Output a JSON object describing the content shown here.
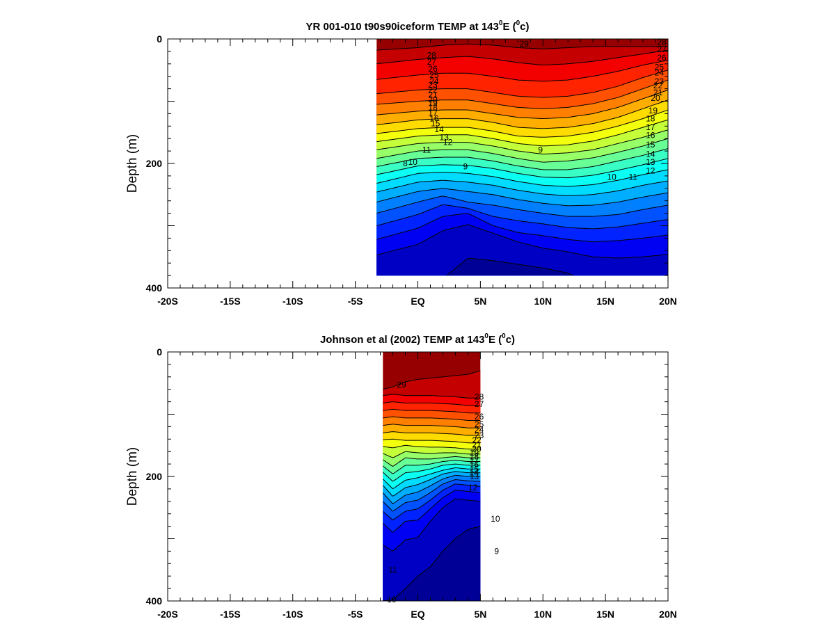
{
  "chart_data": [
    {
      "type": "heatmap",
      "subtype": "filled-contour",
      "title": "YR 001-010 t90s90iceform TEMP at 143",
      "title_sup1": "0",
      "title_mid": "E (",
      "title_sup2": "0",
      "title_end": "c)",
      "ylabel": "Depth (m)",
      "xlim": [
        -20,
        20
      ],
      "ylim": [
        0,
        400
      ],
      "y_inverted": true,
      "y_ticks": [
        0,
        200,
        400
      ],
      "x_ticks": [
        -20,
        -15,
        -10,
        -5,
        0,
        5,
        10,
        15,
        20
      ],
      "x_tick_labels": [
        "-20S",
        "-15S",
        "-10S",
        "-5S",
        "EQ",
        "5N",
        "10N",
        "15N",
        "20N"
      ],
      "data_extent": {
        "lat": [
          -3.3,
          20
        ],
        "depth": [
          0,
          380
        ]
      },
      "contour_levels": [
        8,
        9,
        10,
        11,
        12,
        13,
        14,
        15,
        16,
        17,
        18,
        19,
        20,
        21,
        22,
        23,
        24,
        25,
        26,
        27,
        28,
        29
      ],
      "colorscale": "jet",
      "color_range": [
        8,
        30
      ],
      "isotherm_depth_profiles": {
        "lats": [
          -3.3,
          0,
          2,
          4,
          6,
          8,
          10,
          12,
          14,
          16,
          18,
          20
        ],
        "temps": [
          29,
          28,
          27,
          26,
          25,
          24,
          23,
          22,
          21,
          20,
          19,
          18,
          17,
          16,
          15,
          14,
          13,
          12,
          11,
          10,
          9
        ],
        "depths": [
          [
            18,
            14,
            10,
            8,
            10,
            14,
            16,
            14,
            12,
            12,
            12,
            12
          ],
          [
            40,
            33,
            30,
            28,
            32,
            38,
            42,
            40,
            36,
            30,
            24,
            18
          ],
          [
            65,
            58,
            55,
            55,
            60,
            66,
            68,
            66,
            60,
            52,
            42,
            34
          ],
          [
            88,
            82,
            80,
            80,
            86,
            92,
            94,
            92,
            86,
            76,
            62,
            50
          ],
          [
            105,
            100,
            98,
            98,
            104,
            110,
            112,
            110,
            104,
            94,
            80,
            66
          ],
          [
            122,
            116,
            114,
            114,
            120,
            126,
            128,
            126,
            120,
            110,
            96,
            82
          ],
          [
            138,
            130,
            128,
            128,
            134,
            142,
            144,
            142,
            136,
            126,
            112,
            98
          ],
          [
            152,
            144,
            142,
            142,
            148,
            156,
            158,
            156,
            150,
            140,
            128,
            114
          ],
          [
            165,
            156,
            154,
            154,
            160,
            168,
            172,
            170,
            164,
            154,
            142,
            130
          ],
          [
            178,
            168,
            166,
            166,
            172,
            180,
            185,
            183,
            178,
            168,
            158,
            146
          ],
          [
            192,
            180,
            178,
            178,
            184,
            192,
            198,
            196,
            191,
            182,
            172,
            160
          ],
          [
            205,
            192,
            190,
            190,
            196,
            204,
            210,
            210,
            205,
            196,
            187,
            176
          ],
          [
            218,
            204,
            202,
            203,
            208,
            216,
            222,
            223,
            219,
            211,
            202,
            192
          ],
          [
            232,
            216,
            214,
            216,
            221,
            229,
            235,
            237,
            234,
            227,
            218,
            210
          ],
          [
            246,
            230,
            227,
            230,
            235,
            243,
            249,
            252,
            250,
            244,
            235,
            228
          ],
          [
            262,
            245,
            240,
            245,
            250,
            258,
            264,
            268,
            267,
            262,
            254,
            247
          ],
          [
            280,
            262,
            252,
            262,
            267,
            274,
            280,
            285,
            285,
            282,
            274,
            267
          ],
          [
            300,
            282,
            266,
            272,
            285,
            292,
            297,
            303,
            305,
            302,
            296,
            290
          ],
          [
            322,
            304,
            285,
            280,
            300,
            311,
            316,
            322,
            326,
            324,
            320,
            315
          ],
          [
            347,
            330,
            308,
            298,
            312,
            326,
            336,
            342,
            350,
            352,
            350,
            346
          ],
          [
            400,
            400,
            385,
            352,
            356,
            362,
            368,
            376,
            396,
            400,
            400,
            400
          ]
        ]
      },
      "contour_labels": [
        {
          "text": "29",
          "lat": 8.5,
          "depth": 8
        },
        {
          "text": "28",
          "lat": 19.5,
          "depth": 5
        },
        {
          "text": "27",
          "lat": 19.5,
          "depth": 17
        },
        {
          "text": "26",
          "lat": 19.5,
          "depth": 30
        },
        {
          "text": "25",
          "lat": 19.3,
          "depth": 45
        },
        {
          "text": "24",
          "lat": 19.3,
          "depth": 54
        },
        {
          "text": "23",
          "lat": 19.3,
          "depth": 68
        },
        {
          "text": "22",
          "lat": 19.2,
          "depth": 75
        },
        {
          "text": "21",
          "lat": 19.2,
          "depth": 86
        },
        {
          "text": "20",
          "lat": 19.0,
          "depth": 95
        },
        {
          "text": "19",
          "lat": 18.8,
          "depth": 115
        },
        {
          "text": "18",
          "lat": 18.6,
          "depth": 128
        },
        {
          "text": "17",
          "lat": 18.6,
          "depth": 142
        },
        {
          "text": "16",
          "lat": 18.6,
          "depth": 155
        },
        {
          "text": "15",
          "lat": 18.6,
          "depth": 170
        },
        {
          "text": "14",
          "lat": 18.6,
          "depth": 185
        },
        {
          "text": "13",
          "lat": 18.6,
          "depth": 198
        },
        {
          "text": "12",
          "lat": 18.6,
          "depth": 212
        },
        {
          "text": "11",
          "lat": 17.2,
          "depth": 222
        },
        {
          "text": "10",
          "lat": 15.5,
          "depth": 222
        },
        {
          "text": "9",
          "lat": 9.8,
          "depth": 178
        },
        {
          "text": "28",
          "lat": 1.1,
          "depth": 26
        },
        {
          "text": "27",
          "lat": 1.1,
          "depth": 37
        },
        {
          "text": "26",
          "lat": 1.2,
          "depth": 48
        },
        {
          "text": "25",
          "lat": 1.3,
          "depth": 58
        },
        {
          "text": "24",
          "lat": 1.3,
          "depth": 68
        },
        {
          "text": "23",
          "lat": 1.2,
          "depth": 74
        },
        {
          "text": "22",
          "lat": 1.2,
          "depth": 82
        },
        {
          "text": "21",
          "lat": 1.2,
          "depth": 90
        },
        {
          "text": "20",
          "lat": 1.2,
          "depth": 97
        },
        {
          "text": "19",
          "lat": 1.2,
          "depth": 103
        },
        {
          "text": "18",
          "lat": 1.2,
          "depth": 110
        },
        {
          "text": "17",
          "lat": 1.2,
          "depth": 119
        },
        {
          "text": "16",
          "lat": 1.3,
          "depth": 128
        },
        {
          "text": "15",
          "lat": 1.4,
          "depth": 136
        },
        {
          "text": "14",
          "lat": 1.7,
          "depth": 145
        },
        {
          "text": "13",
          "lat": 2.1,
          "depth": 158
        },
        {
          "text": "12",
          "lat": 2.4,
          "depth": 166
        },
        {
          "text": "11",
          "lat": 0.7,
          "depth": 178
        },
        {
          "text": "10",
          "lat": -0.4,
          "depth": 198
        },
        {
          "text": "9",
          "lat": 3.8,
          "depth": 205
        },
        {
          "text": "8",
          "lat": -1.0,
          "depth": 200
        }
      ]
    },
    {
      "type": "heatmap",
      "subtype": "filled-contour",
      "title": "Johnson et al (2002) TEMP at 143",
      "title_sup1": "0",
      "title_mid": "E (",
      "title_sup2": "0",
      "title_end": "c)",
      "ylabel": "Depth (m)",
      "xlim": [
        -20,
        20
      ],
      "ylim": [
        0,
        400
      ],
      "y_inverted": true,
      "y_ticks": [
        0,
        200,
        400
      ],
      "x_ticks": [
        -20,
        -15,
        -10,
        -5,
        0,
        5,
        10,
        15,
        20
      ],
      "x_tick_labels": [
        "-20S",
        "-15S",
        "-10S",
        "-5S",
        "EQ",
        "5N",
        "10N",
        "15N",
        "20N"
      ],
      "data_extent": {
        "lat": [
          -2.8,
          5
        ],
        "depth": [
          0,
          400
        ]
      },
      "contour_levels": [
        8,
        9,
        10,
        11,
        12,
        13,
        14,
        15,
        16,
        17,
        18,
        19,
        20,
        21,
        22,
        23,
        24,
        25,
        26,
        27,
        28,
        29
      ],
      "colorscale": "jet",
      "color_range": [
        8,
        30
      ],
      "isotherm_depth_profiles": {
        "lats": [
          -2.8,
          -2,
          -1,
          0,
          1,
          2,
          3,
          4,
          5
        ],
        "temps": [
          29,
          28,
          27,
          26,
          25,
          24,
          23,
          22,
          21,
          20,
          19,
          18,
          17,
          16,
          15,
          14,
          13,
          12,
          11,
          10,
          9
        ],
        "depths": [
          [
            60,
            56,
            48,
            44,
            42,
            40,
            38,
            36,
            30
          ],
          [
            70,
            68,
            70,
            70,
            70,
            71,
            72,
            74,
            74
          ],
          [
            82,
            80,
            82,
            82,
            82,
            83,
            84,
            86,
            86
          ],
          [
            94,
            92,
            94,
            94,
            94,
            95,
            96,
            98,
            98
          ],
          [
            106,
            104,
            106,
            106,
            106,
            107,
            108,
            110,
            110
          ],
          [
            118,
            116,
            118,
            118,
            118,
            119,
            120,
            122,
            122
          ],
          [
            130,
            128,
            130,
            130,
            130,
            131,
            132,
            134,
            134
          ],
          [
            141,
            140,
            142,
            142,
            142,
            143,
            144,
            146,
            146
          ],
          [
            152,
            154,
            150,
            152,
            153,
            153,
            154,
            156,
            156
          ],
          [
            163,
            170,
            160,
            162,
            163,
            162,
            162,
            164,
            164
          ],
          [
            173,
            184,
            170,
            172,
            172,
            170,
            168,
            170,
            170
          ],
          [
            183,
            196,
            182,
            182,
            180,
            176,
            174,
            176,
            176
          ],
          [
            193,
            208,
            194,
            192,
            188,
            182,
            180,
            182,
            182
          ],
          [
            204,
            220,
            206,
            202,
            196,
            190,
            186,
            188,
            188
          ],
          [
            214,
            232,
            218,
            213,
            205,
            196,
            192,
            194,
            194
          ],
          [
            226,
            244,
            230,
            225,
            215,
            204,
            198,
            200,
            200
          ],
          [
            240,
            256,
            242,
            238,
            226,
            212,
            205,
            207,
            208
          ],
          [
            256,
            270,
            256,
            252,
            238,
            222,
            212,
            214,
            216
          ],
          [
            275,
            290,
            272,
            270,
            252,
            234,
            222,
            224,
            226
          ],
          [
            310,
            320,
            302,
            298,
            272,
            250,
            236,
            238,
            240
          ],
          [
            400,
            398,
            380,
            360,
            345,
            320,
            300,
            285,
            280
          ]
        ]
      },
      "contour_labels": [
        {
          "text": "29",
          "lat": -1.3,
          "depth": 53
        },
        {
          "text": "28",
          "lat": 4.9,
          "depth": 72
        },
        {
          "text": "27",
          "lat": 4.9,
          "depth": 84
        },
        {
          "text": "26",
          "lat": 4.9,
          "depth": 104
        },
        {
          "text": "25",
          "lat": 4.9,
          "depth": 116
        },
        {
          "text": "24",
          "lat": 4.9,
          "depth": 125
        },
        {
          "text": "23",
          "lat": 4.9,
          "depth": 134
        },
        {
          "text": "22",
          "lat": 4.7,
          "depth": 142
        },
        {
          "text": "21",
          "lat": 4.7,
          "depth": 149
        },
        {
          "text": "20",
          "lat": 4.7,
          "depth": 156
        },
        {
          "text": "19",
          "lat": 4.5,
          "depth": 162
        },
        {
          "text": "18",
          "lat": 4.5,
          "depth": 168
        },
        {
          "text": "17",
          "lat": 4.5,
          "depth": 175
        },
        {
          "text": "16",
          "lat": 4.5,
          "depth": 181
        },
        {
          "text": "15",
          "lat": 4.5,
          "depth": 188
        },
        {
          "text": "14",
          "lat": 4.5,
          "depth": 194
        },
        {
          "text": "13",
          "lat": 4.5,
          "depth": 200
        },
        {
          "text": "12",
          "lat": 4.4,
          "depth": 218
        },
        {
          "text": "10",
          "lat": 6.2,
          "depth": 268
        },
        {
          "text": "9",
          "lat": 6.3,
          "depth": 320
        },
        {
          "text": "11",
          "lat": -2.0,
          "depth": 350
        },
        {
          "text": "10",
          "lat": -2.1,
          "depth": 398
        }
      ]
    }
  ]
}
